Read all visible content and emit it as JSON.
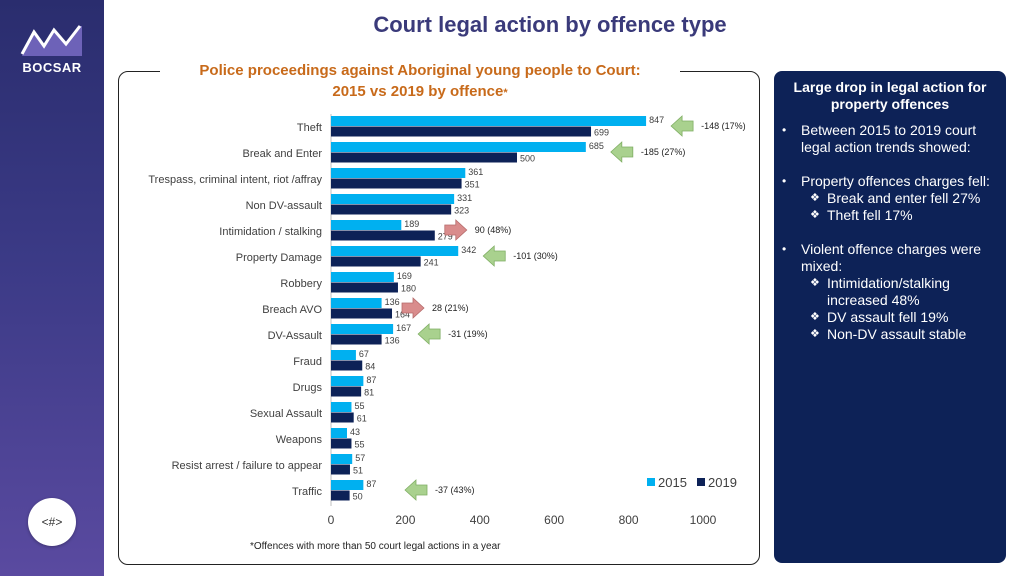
{
  "brand": {
    "name": "BOCSAR",
    "page_number": "<#>"
  },
  "title": "Court legal action by offence type",
  "chart_subtitle": {
    "line1": "Police proceedings against Aboriginal young people to Court:",
    "line2": "2015 vs 2019 by offence",
    "star": "*"
  },
  "footnote": "*Offences with more than 50 court legal actions in a year",
  "colors": {
    "s2015": "#00b0f0",
    "s2019": "#0d2257",
    "up_arrow": "#d98c8c",
    "down_arrow": "#a9d18e",
    "panel": "#0d2257"
  },
  "chart_data": {
    "type": "bar",
    "orientation": "horizontal",
    "categories": [
      "Theft",
      "Break and Enter",
      "Trespass, criminal intent, riot /affray",
      "Non DV-assault",
      "Intimidation / stalking",
      "Property Damage",
      "Robbery",
      "Breach AVO",
      "DV-Assault",
      "Fraud",
      "Drugs",
      "Sexual Assault",
      "Weapons",
      "Resist arrest / failure to appear",
      "Traffic"
    ],
    "series": [
      {
        "name": "2015",
        "color": "#00b0f0",
        "values": [
          847,
          685,
          361,
          331,
          189,
          342,
          169,
          136,
          167,
          67,
          87,
          55,
          43,
          57,
          87
        ]
      },
      {
        "name": "2019",
        "color": "#0d2257",
        "values": [
          699,
          500,
          351,
          323,
          279,
          241,
          180,
          164,
          136,
          84,
          81,
          61,
          55,
          51,
          50
        ]
      }
    ],
    "xlim": [
      0,
      1000
    ],
    "xticks": [
      0,
      200,
      400,
      600,
      800,
      1000
    ],
    "legend_position": "bottom-right",
    "grid": false,
    "annotations": [
      {
        "category": "Theft",
        "text": "-148 (17%)",
        "direction": "down"
      },
      {
        "category": "Break and Enter",
        "text": "-185 (27%)",
        "direction": "down"
      },
      {
        "category": "Intimidation / stalking",
        "text": "90 (48%)",
        "direction": "up"
      },
      {
        "category": "Property Damage",
        "text": "-101 (30%)",
        "direction": "down"
      },
      {
        "category": "Breach AVO",
        "text": "28 (21%)",
        "direction": "up"
      },
      {
        "category": "DV-Assault",
        "text": "-31 (19%)",
        "direction": "down"
      },
      {
        "category": "Traffic",
        "text": "-37 (43%)",
        "direction": "down"
      }
    ]
  },
  "panel": {
    "heading": "Large drop in legal action for property offences",
    "bullets": [
      {
        "text": "Between 2015 to 2019 court legal action trends showed:",
        "subs": []
      },
      {
        "text": "Property offences charges fell:",
        "subs": [
          "Break and enter fell 27%",
          "Theft fell 17%"
        ]
      },
      {
        "text": "Violent offence charges were mixed:",
        "subs": [
          "Intimidation/stalking increased 48%",
          "DV assault fell 19%",
          "Non-DV assault stable"
        ]
      }
    ],
    "bullet_glyph": "•",
    "sub_glyph": "❖"
  }
}
